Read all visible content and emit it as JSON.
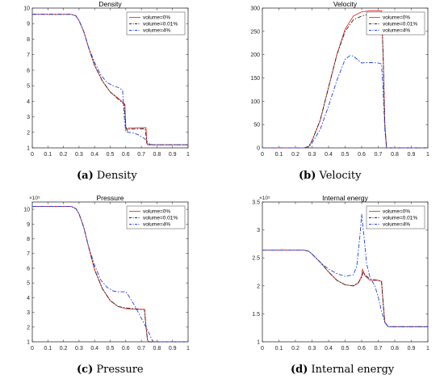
{
  "captions": {
    "a_tag": "(a)",
    "a_text": " Density",
    "b_tag": "(b)",
    "b_text": " Velocity",
    "c_tag": "(c)",
    "c_text": " Pressure",
    "d_tag": "(d)",
    "d_text": " Internal energy"
  },
  "chart_data": [
    {
      "id": "a",
      "type": "line",
      "title": "Density",
      "xlabel": "",
      "ylabel": "",
      "xlim": [
        0,
        1
      ],
      "ylim": [
        1,
        10
      ],
      "xticks": [
        0,
        0.1,
        0.2,
        0.3,
        0.4,
        0.5,
        0.6,
        0.7,
        0.8,
        0.9,
        1
      ],
      "xticklabels": [
        "0",
        "0.1",
        "0.2",
        "0.3",
        "0.4",
        "0.5",
        "0.6",
        "0.7",
        "0.8",
        "0.9",
        "1"
      ],
      "yticks": [
        1,
        2,
        3,
        4,
        5,
        6,
        7,
        8,
        9,
        10
      ],
      "yticklabels": [
        "1",
        "2",
        "3",
        "4",
        "5",
        "6",
        "7",
        "8",
        "9",
        "10"
      ],
      "exponent_label": "",
      "legend": "top-right",
      "series": [
        {
          "name": "volume=0%",
          "color": "#e8312f",
          "dash": "solid",
          "x": [
            0,
            0.25,
            0.28,
            0.3,
            0.33,
            0.36,
            0.4,
            0.45,
            0.5,
            0.55,
            0.58,
            0.595,
            0.6,
            0.605,
            0.62,
            0.7,
            0.73,
            0.735,
            0.74,
            1
          ],
          "y": [
            9.6,
            9.6,
            9.5,
            9.2,
            8.5,
            7.5,
            6.3,
            5.3,
            4.6,
            4.2,
            3.95,
            3.8,
            2.2,
            2.2,
            2.28,
            2.3,
            2.3,
            1.3,
            1.2,
            1.2
          ]
        },
        {
          "name": "volume=0.01%",
          "color": "#222222",
          "dash": "dashdot",
          "x": [
            0,
            0.25,
            0.28,
            0.3,
            0.33,
            0.36,
            0.4,
            0.45,
            0.5,
            0.55,
            0.58,
            0.59,
            0.6,
            0.61,
            0.62,
            0.7,
            0.725,
            0.735,
            0.74,
            1
          ],
          "y": [
            9.6,
            9.6,
            9.5,
            9.2,
            8.5,
            7.5,
            6.3,
            5.3,
            4.6,
            4.15,
            3.9,
            3.8,
            2.4,
            2.1,
            2.2,
            2.22,
            2.22,
            1.3,
            1.2,
            1.2
          ]
        },
        {
          "name": "volume=4%",
          "color": "#1f3fe0",
          "dash": "dashdot",
          "x": [
            0,
            0.25,
            0.28,
            0.3,
            0.33,
            0.36,
            0.4,
            0.44,
            0.48,
            0.52,
            0.56,
            0.58,
            0.59,
            0.6,
            0.62,
            0.65,
            0.68,
            0.72,
            0.75,
            0.77,
            1
          ],
          "y": [
            9.6,
            9.6,
            9.5,
            9.2,
            8.5,
            7.5,
            6.5,
            5.7,
            5.2,
            5.0,
            4.85,
            4.7,
            3.0,
            2.05,
            2.0,
            1.95,
            1.85,
            1.6,
            1.25,
            1.2,
            1.2
          ]
        }
      ]
    },
    {
      "id": "b",
      "type": "line",
      "title": "Velocity",
      "xlabel": "",
      "ylabel": "",
      "xlim": [
        0,
        1
      ],
      "ylim": [
        0,
        300
      ],
      "xticks": [
        0,
        0.1,
        0.2,
        0.3,
        0.4,
        0.5,
        0.6,
        0.7,
        0.8,
        0.9,
        1
      ],
      "xticklabels": [
        "0",
        "0.1",
        "0.2",
        "0.3",
        "0.4",
        "0.5",
        "0.6",
        "0.7",
        "0.8",
        "0.9",
        "1"
      ],
      "yticks": [
        0,
        50,
        100,
        150,
        200,
        250,
        300
      ],
      "yticklabels": [
        "0",
        "50",
        "100",
        "150",
        "200",
        "250",
        "300"
      ],
      "exponent_label": "",
      "legend": "top-right",
      "series": [
        {
          "name": "volume=0%",
          "color": "#e8312f",
          "dash": "solid",
          "x": [
            0,
            0.25,
            0.28,
            0.3,
            0.35,
            0.4,
            0.45,
            0.5,
            0.55,
            0.6,
            0.65,
            0.7,
            0.72,
            0.73,
            0.74,
            0.75,
            1
          ],
          "y": [
            0,
            0,
            3,
            15,
            60,
            130,
            200,
            255,
            283,
            292,
            294,
            294,
            294,
            200,
            50,
            0,
            0
          ]
        },
        {
          "name": "volume=0.01%",
          "color": "#222222",
          "dash": "dashdot",
          "x": [
            0,
            0.25,
            0.28,
            0.3,
            0.35,
            0.4,
            0.45,
            0.5,
            0.55,
            0.6,
            0.62,
            0.65,
            0.7,
            0.72,
            0.73,
            0.74,
            0.75,
            1
          ],
          "y": [
            0,
            0,
            3,
            15,
            60,
            130,
            200,
            250,
            275,
            283,
            285,
            286,
            287,
            288,
            200,
            50,
            0,
            0
          ]
        },
        {
          "name": "volume=4%",
          "color": "#1f3fe0",
          "dash": "dashdot",
          "x": [
            0,
            0.25,
            0.28,
            0.3,
            0.35,
            0.4,
            0.45,
            0.5,
            0.53,
            0.55,
            0.58,
            0.6,
            0.62,
            0.66,
            0.7,
            0.72,
            0.73,
            0.74,
            0.75,
            1
          ],
          "y": [
            0,
            0,
            2,
            10,
            40,
            90,
            145,
            190,
            198,
            197,
            188,
            182,
            183,
            183,
            182,
            180,
            120,
            40,
            0,
            0
          ]
        }
      ]
    },
    {
      "id": "c",
      "type": "line",
      "title": "Pressure",
      "xlabel": "",
      "ylabel": "",
      "xlim": [
        0,
        1
      ],
      "ylim": [
        1,
        10.5
      ],
      "xticks": [
        0,
        0.1,
        0.2,
        0.3,
        0.4,
        0.5,
        0.6,
        0.7,
        0.8,
        0.9,
        1
      ],
      "xticklabels": [
        "0",
        "0.1",
        "0.2",
        "0.3",
        "0.4",
        "0.5",
        "0.6",
        "0.7",
        "0.8",
        "0.9",
        "1"
      ],
      "yticks": [
        1,
        2,
        3,
        4,
        5,
        6,
        7,
        8,
        9,
        10
      ],
      "yticklabels": [
        "1",
        "2",
        "3",
        "4",
        "5",
        "6",
        "7",
        "8",
        "9",
        "10"
      ],
      "exponent_label": "×10⁵",
      "legend": "top-right",
      "series": [
        {
          "name": "volume=0%",
          "color": "#e8312f",
          "dash": "solid",
          "x": [
            0,
            0.25,
            0.28,
            0.3,
            0.33,
            0.36,
            0.4,
            0.45,
            0.5,
            0.55,
            0.6,
            0.65,
            0.7,
            0.72,
            0.73,
            0.74,
            0.75,
            1
          ],
          "y": [
            10.2,
            10.2,
            10.05,
            9.7,
            8.8,
            7.5,
            5.9,
            4.6,
            3.8,
            3.4,
            3.25,
            3.22,
            3.2,
            3.2,
            2.0,
            1.1,
            1.0,
            1.0
          ]
        },
        {
          "name": "volume=0.01%",
          "color": "#222222",
          "dash": "dashdot",
          "x": [
            0,
            0.25,
            0.28,
            0.3,
            0.33,
            0.36,
            0.4,
            0.45,
            0.5,
            0.55,
            0.6,
            0.65,
            0.7,
            0.72,
            0.73,
            0.74,
            0.75,
            1
          ],
          "y": [
            10.2,
            10.2,
            10.05,
            9.7,
            8.8,
            7.5,
            5.9,
            4.6,
            3.8,
            3.4,
            3.3,
            3.25,
            3.22,
            3.2,
            2.0,
            1.1,
            1.0,
            1.0
          ]
        },
        {
          "name": "volume=4%",
          "color": "#1f3fe0",
          "dash": "dashdot",
          "x": [
            0,
            0.25,
            0.28,
            0.3,
            0.33,
            0.36,
            0.4,
            0.44,
            0.48,
            0.52,
            0.55,
            0.6,
            0.62,
            0.66,
            0.7,
            0.74,
            0.77,
            0.78,
            1
          ],
          "y": [
            10.2,
            10.2,
            10.05,
            9.7,
            8.8,
            7.5,
            6.2,
            5.2,
            4.7,
            4.45,
            4.4,
            4.4,
            4.1,
            3.4,
            2.6,
            1.8,
            1.1,
            1.0,
            1.0
          ]
        }
      ]
    },
    {
      "id": "d",
      "type": "line",
      "title": "Internal energy",
      "xlabel": "",
      "ylabel": "",
      "xlim": [
        0,
        1
      ],
      "ylim": [
        1,
        3.5
      ],
      "xticks": [
        0,
        0.1,
        0.2,
        0.3,
        0.4,
        0.5,
        0.6,
        0.7,
        0.8,
        0.9,
        1
      ],
      "xticklabels": [
        "0",
        "0.1",
        "0.2",
        "0.3",
        "0.4",
        "0.5",
        "0.6",
        "0.7",
        "0.8",
        "0.9",
        "1"
      ],
      "yticks": [
        1,
        1.5,
        2,
        2.5,
        3,
        3.5
      ],
      "yticklabels": [
        "1",
        "1.5",
        "2",
        "2.5",
        "3",
        "3.5"
      ],
      "exponent_label": "×10⁵",
      "legend": "top-right",
      "series": [
        {
          "name": "volume=0%",
          "color": "#e8312f",
          "dash": "solid",
          "x": [
            0,
            0.25,
            0.28,
            0.3,
            0.35,
            0.4,
            0.45,
            0.5,
            0.55,
            0.58,
            0.6,
            0.605,
            0.62,
            0.65,
            0.7,
            0.72,
            0.73,
            0.74,
            0.76,
            1
          ],
          "y": [
            2.64,
            2.64,
            2.62,
            2.57,
            2.42,
            2.25,
            2.1,
            2.02,
            2.0,
            2.05,
            2.18,
            2.3,
            2.18,
            2.1,
            2.1,
            2.08,
            1.7,
            1.35,
            1.27,
            1.27
          ]
        },
        {
          "name": "volume=0.01%",
          "color": "#222222",
          "dash": "dashdot",
          "x": [
            0,
            0.25,
            0.28,
            0.3,
            0.35,
            0.4,
            0.45,
            0.5,
            0.55,
            0.58,
            0.6,
            0.61,
            0.62,
            0.65,
            0.7,
            0.72,
            0.73,
            0.74,
            0.76,
            1
          ],
          "y": [
            2.64,
            2.64,
            2.62,
            2.57,
            2.42,
            2.25,
            2.1,
            2.02,
            2.0,
            2.06,
            2.15,
            2.25,
            2.2,
            2.12,
            2.1,
            2.08,
            1.7,
            1.35,
            1.27,
            1.27
          ]
        },
        {
          "name": "volume=4%",
          "color": "#1f3fe0",
          "dash": "dashdot",
          "x": [
            0,
            0.25,
            0.28,
            0.3,
            0.35,
            0.4,
            0.45,
            0.5,
            0.55,
            0.57,
            0.59,
            0.6,
            0.61,
            0.63,
            0.65,
            0.68,
            0.7,
            0.72,
            0.74,
            0.76,
            1
          ],
          "y": [
            2.64,
            2.64,
            2.62,
            2.57,
            2.42,
            2.3,
            2.22,
            2.17,
            2.2,
            2.35,
            2.9,
            3.28,
            3.0,
            2.4,
            2.15,
            2.0,
            1.8,
            1.55,
            1.35,
            1.27,
            1.27
          ]
        }
      ]
    }
  ]
}
